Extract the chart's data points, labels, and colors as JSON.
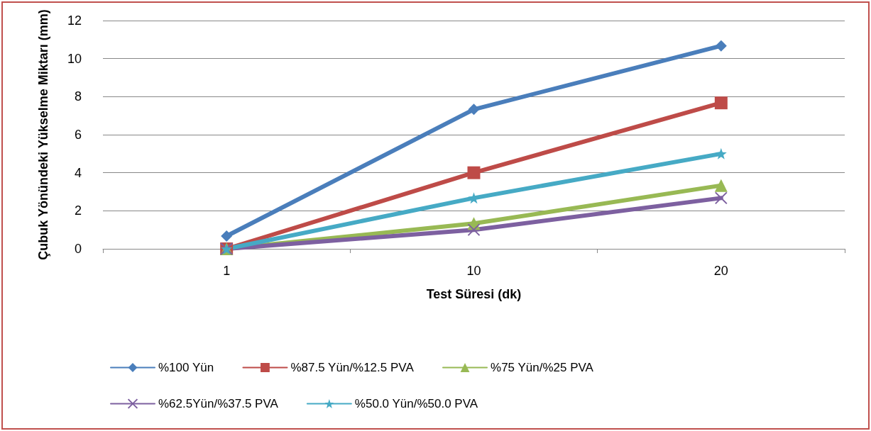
{
  "chart_data": {
    "type": "line",
    "xlabel": "Test Süresi (dk)",
    "ylabel": "Çubuk Yönündeki Yükselme Miktarı (mm)",
    "categories": [
      "1",
      "10",
      "20"
    ],
    "ylim": [
      0,
      12
    ],
    "yticks": [
      0,
      2,
      4,
      6,
      8,
      10,
      12
    ],
    "grid": "y",
    "legend": "bottom",
    "line_style": "solid",
    "series": [
      {
        "name": "%100 Yün",
        "color": "#4a7ebb",
        "marker": "diamond",
        "values": [
          0.67,
          7.33,
          10.67
        ]
      },
      {
        "name": "%87.5 Yün/%12.5 PVA",
        "color": "#be4b48",
        "marker": "square",
        "values": [
          0,
          4,
          7.67
        ]
      },
      {
        "name": "%75 Yün/%25 PVA",
        "color": "#98b954",
        "marker": "triangle",
        "values": [
          0,
          1.33,
          3.33
        ]
      },
      {
        "name": "%62.5Yün/%37.5 PVA",
        "color": "#7d60a0",
        "marker": "cross",
        "values": [
          0,
          1,
          2.67
        ]
      },
      {
        "name": "%50.0 Yün/%50.0 PVA",
        "color": "#46aac5",
        "marker": "star",
        "values": [
          0,
          2.67,
          5
        ]
      }
    ]
  }
}
